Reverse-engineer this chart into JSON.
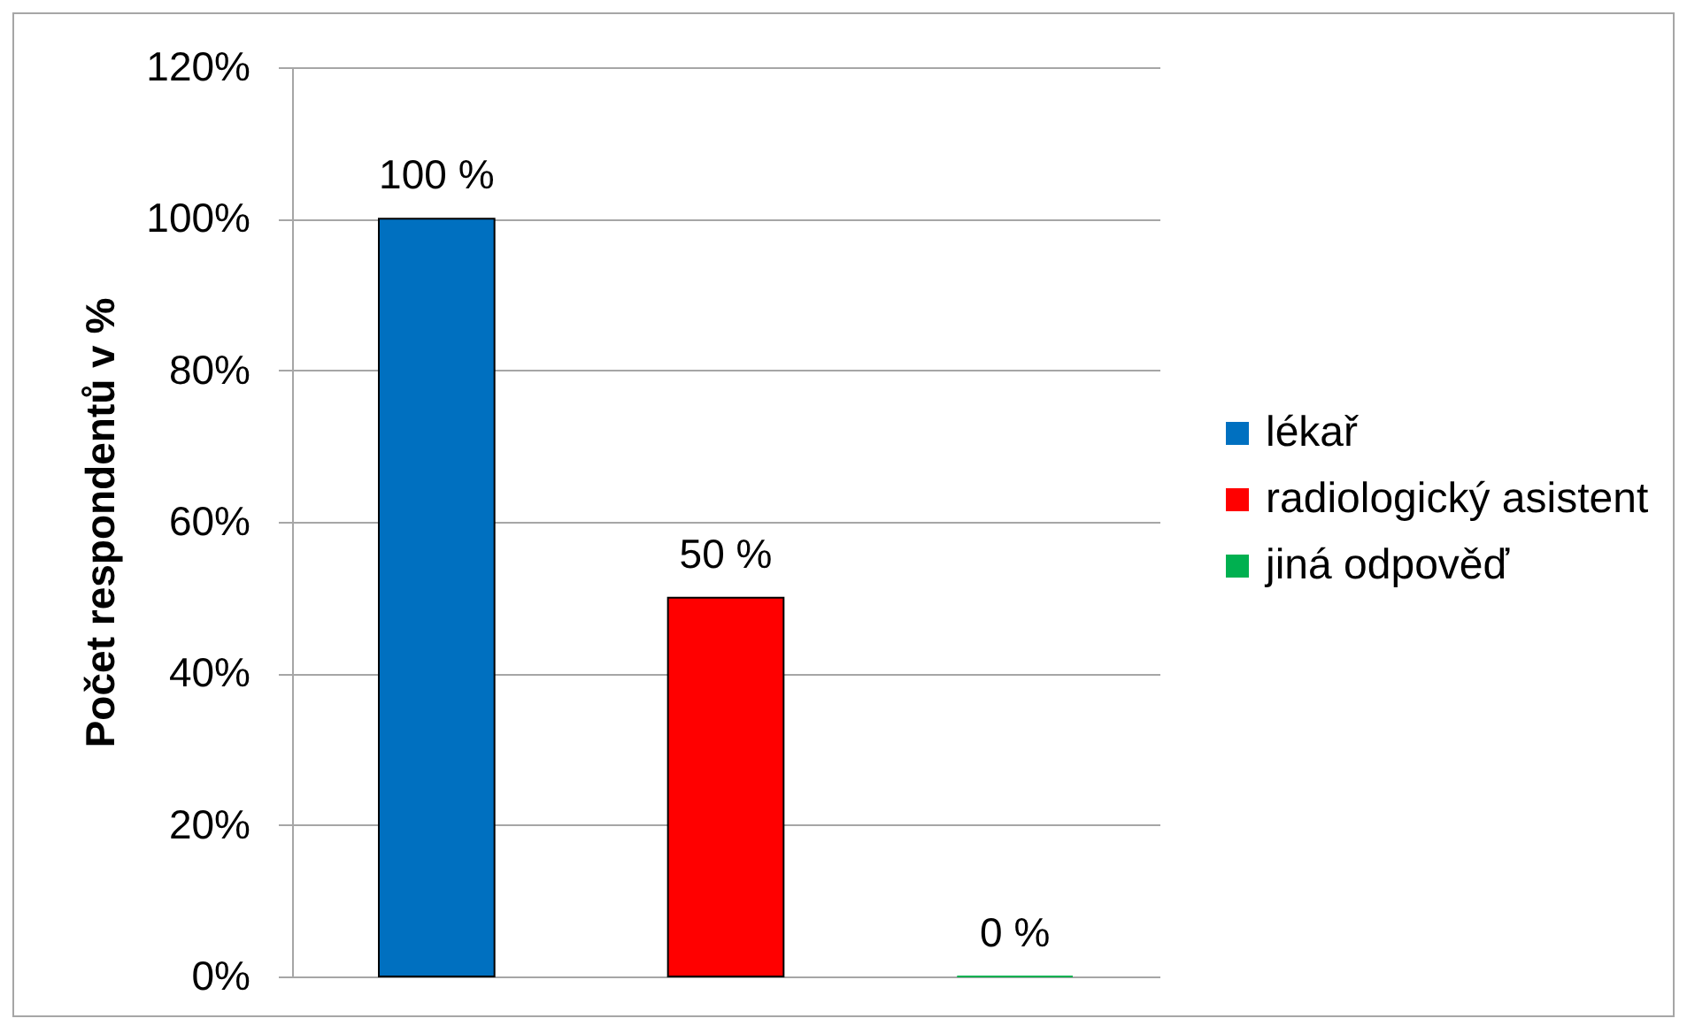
{
  "chart_data": {
    "type": "bar",
    "ylabel": "Počet respondentů v %",
    "categories": [
      null
    ],
    "series": [
      {
        "name": "lékař",
        "color": "#0070c0",
        "values": [
          100
        ],
        "value_labels": [
          "100 %"
        ]
      },
      {
        "name": "radiologický asistent",
        "color": "#ff0000",
        "values": [
          50
        ],
        "value_labels": [
          "50 %"
        ]
      },
      {
        "name": "jiná odpověď",
        "color": "#00b050",
        "values": [
          0
        ],
        "value_labels": [
          "0 %"
        ]
      }
    ],
    "ylim": [
      0,
      120
    ],
    "yticks": [
      {
        "value": 0,
        "label": "0%"
      },
      {
        "value": 20,
        "label": "20%"
      },
      {
        "value": 40,
        "label": "40%"
      },
      {
        "value": 60,
        "label": "60%"
      },
      {
        "value": 80,
        "label": "80%"
      },
      {
        "value": 100,
        "label": "100%"
      },
      {
        "value": 120,
        "label": "120%"
      }
    ],
    "grid": "y",
    "legend": "right",
    "tick_labels": "y"
  }
}
